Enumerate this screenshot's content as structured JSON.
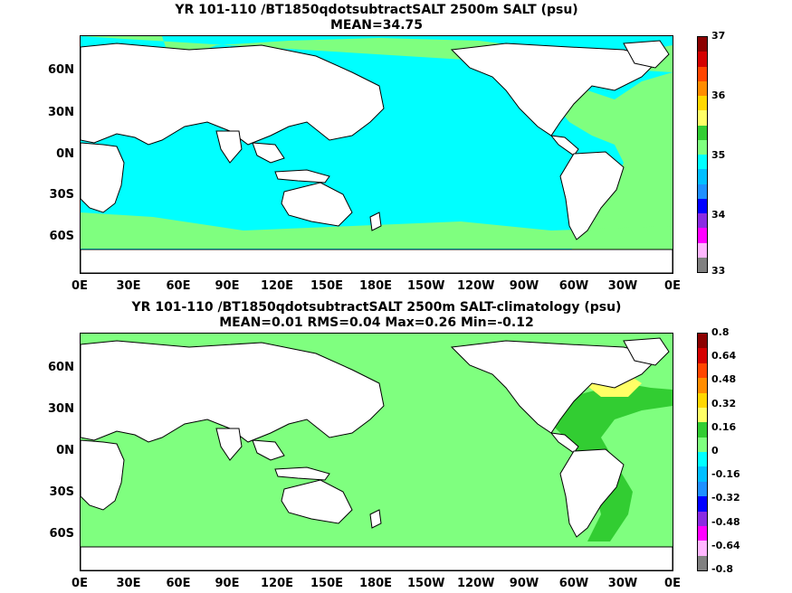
{
  "top": {
    "title_line1": "YR 101-110 /BT1850qdotsubtractSALT 2500m SALT (psu)",
    "title_line2": "MEAN=34.75",
    "colorbar_labels": [
      "37",
      "36",
      "35",
      "34",
      "33"
    ],
    "colorbar_colors": [
      "#8b0000",
      "#d40000",
      "#ff4500",
      "#ff8c00",
      "#ffd700",
      "#ffff66",
      "#32cd32",
      "#7fff7f",
      "#00ffff",
      "#00bfff",
      "#1e90ff",
      "#0000ff",
      "#8a2be2",
      "#ff00ff",
      "#ffb6ff",
      "#808080"
    ]
  },
  "bottom": {
    "title_line1": "YR 101-110 /BT1850qdotsubtractSALT 2500m SALT-climatology (psu)",
    "title_line2": "MEAN=0.01   RMS=0.04   Max=0.26   Min=-0.12",
    "colorbar_labels": [
      "0.8",
      "0.64",
      "0.48",
      "0.32",
      "0.16",
      "0",
      "-0.16",
      "-0.32",
      "-0.48",
      "-0.64",
      "-0.8"
    ],
    "colorbar_colors": [
      "#8b0000",
      "#d40000",
      "#ff4500",
      "#ff8c00",
      "#ffd700",
      "#ffff66",
      "#32cd32",
      "#7fff7f",
      "#00ffff",
      "#00bfff",
      "#1e90ff",
      "#0000ff",
      "#8a2be2",
      "#ff00ff",
      "#ffb6ff",
      "#808080"
    ]
  },
  "axes": {
    "lat_labels": [
      "60N",
      "30N",
      "0N",
      "30S",
      "60S"
    ],
    "lon_labels": [
      "0E",
      "30E",
      "60E",
      "90E",
      "120E",
      "150E",
      "180E",
      "150W",
      "120W",
      "90W",
      "60W",
      "30W",
      "0E"
    ]
  },
  "colors": {
    "ocean_top": "#00ffff",
    "atlantic_top": "#7fff7f",
    "ocean_bottom": "#7fff7f",
    "anomaly_high": "#32cd32",
    "anomaly_max": "#ffff66",
    "land": "#ffffff",
    "coast": "#000000"
  }
}
